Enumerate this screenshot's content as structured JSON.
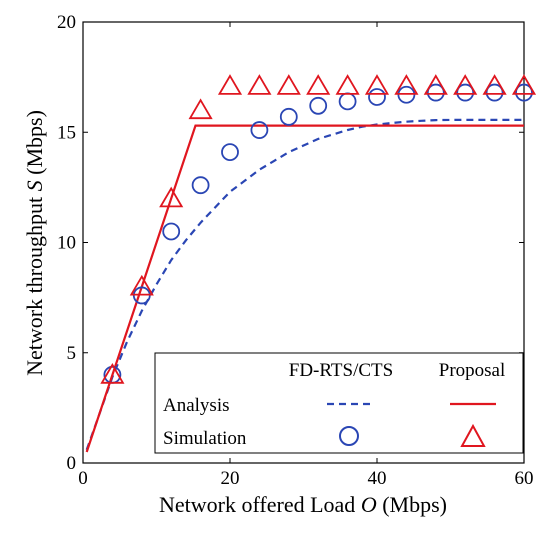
{
  "chart_data": {
    "type": "line",
    "xlabel_main": "Network offered Load ",
    "xlabel_var": "O",
    "xlabel_unit": " (Mbps)",
    "ylabel_main": "Network throughput ",
    "ylabel_var": "S",
    "ylabel_unit": " (Mbps)",
    "xlim": [
      0,
      60
    ],
    "ylim": [
      0,
      20
    ],
    "xticks": [
      0,
      20,
      40,
      60
    ],
    "yticks": [
      0,
      5,
      10,
      15,
      20
    ],
    "grid": false,
    "legend": {
      "placement": "bottom-right",
      "col_headers": [
        "FD-RTS/CTS",
        "Proposal"
      ],
      "row_labels": [
        "Analysis",
        "Simulation"
      ]
    },
    "series": [
      {
        "name": "FD-RTS/CTS Analysis",
        "style": "dashed",
        "color": "#2a46b4",
        "x": [
          0.5,
          2,
          4,
          6,
          8,
          10,
          12,
          14,
          16,
          18,
          20,
          22,
          24,
          26,
          28,
          30,
          32,
          34,
          36,
          38,
          40,
          42,
          44,
          46,
          48,
          50,
          52,
          54,
          56,
          58,
          60
        ],
        "y": [
          0.6,
          2.0,
          3.9,
          5.5,
          6.9,
          8.1,
          9.2,
          10.1,
          10.9,
          11.6,
          12.3,
          12.8,
          13.3,
          13.7,
          14.1,
          14.4,
          14.7,
          14.9,
          15.1,
          15.25,
          15.35,
          15.42,
          15.48,
          15.52,
          15.55,
          15.56,
          15.56,
          15.56,
          15.56,
          15.56,
          15.56
        ]
      },
      {
        "name": "Proposal Analysis",
        "style": "solid",
        "color": "#e0161f",
        "x": [
          0.5,
          15.3,
          60
        ],
        "y": [
          0.5,
          15.3,
          15.3
        ]
      },
      {
        "name": "FD-RTS/CTS Simulation",
        "style": "circle",
        "color": "#2a46b4",
        "x": [
          4,
          8,
          12,
          16,
          20,
          24,
          28,
          32,
          36,
          40,
          44,
          48,
          52,
          56,
          60
        ],
        "y": [
          4.0,
          7.6,
          10.5,
          12.6,
          14.1,
          15.1,
          15.7,
          16.2,
          16.4,
          16.6,
          16.7,
          16.8,
          16.8,
          16.8,
          16.8
        ]
      },
      {
        "name": "Proposal Simulation",
        "style": "triangle",
        "color": "#e0161f",
        "x": [
          4,
          8,
          12,
          16,
          20,
          24,
          28,
          32,
          36,
          40,
          44,
          48,
          52,
          56,
          60
        ],
        "y": [
          4.0,
          8.0,
          12.0,
          16.0,
          17.1,
          17.1,
          17.1,
          17.1,
          17.1,
          17.1,
          17.1,
          17.1,
          17.1,
          17.1,
          17.1
        ]
      }
    ]
  }
}
